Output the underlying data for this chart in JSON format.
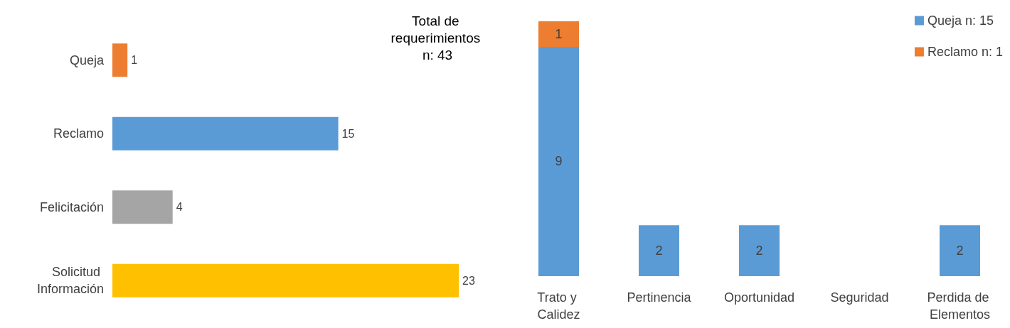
{
  "chart_data": [
    {
      "type": "bar",
      "orientation": "horizontal",
      "title": "Total de requerimientos n: 43",
      "categories": [
        "Queja",
        "Reclamo",
        "Felicitación",
        "Solicitud Información"
      ],
      "values": [
        1,
        15,
        4,
        23
      ],
      "colors": [
        "#ed7d31",
        "#5b9bd5",
        "#a5a5a5",
        "#ffc000"
      ],
      "data_labels": true
    },
    {
      "type": "bar",
      "stacked": true,
      "categories": [
        "Trato y Calidez",
        "Pertinencia",
        "Oportunidad",
        "Seguridad",
        "Perdida de Elementos"
      ],
      "series": [
        {
          "name": "Queja n: 15",
          "color": "#5b9bd5",
          "values": [
            9,
            2,
            2,
            0,
            2
          ],
          "value_labels": [
            "9",
            "2",
            "2",
            null,
            "2"
          ]
        },
        {
          "name": "Reclamo n: 1",
          "color": "#ed7d31",
          "values": [
            1,
            0,
            0,
            0,
            0
          ],
          "value_labels": [
            "1",
            null,
            null,
            null,
            null
          ]
        }
      ],
      "legend": "top right"
    }
  ]
}
